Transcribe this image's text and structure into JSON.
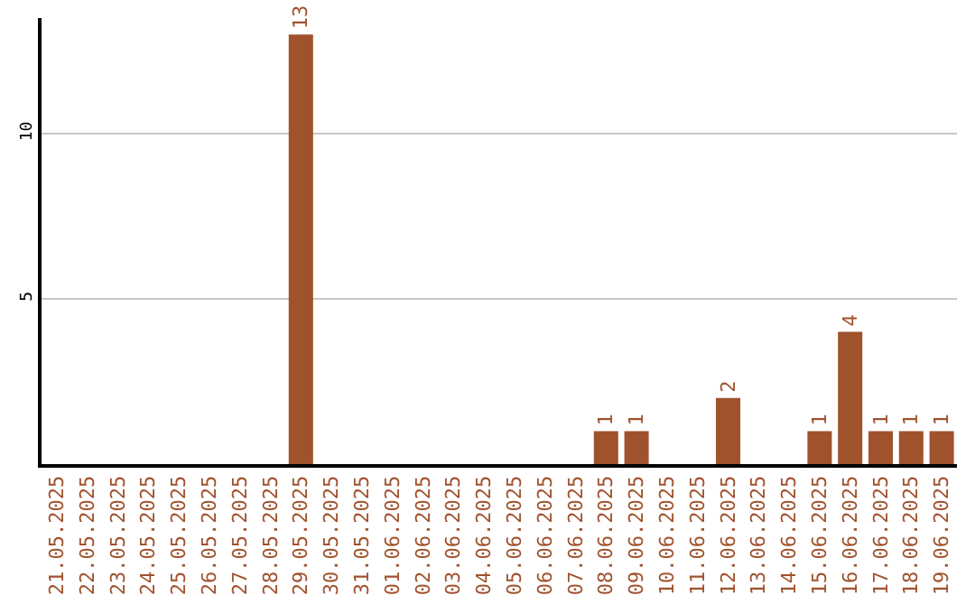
{
  "chart_data": {
    "type": "bar",
    "categories": [
      "21.05.2025",
      "22.05.2025",
      "23.05.2025",
      "24.05.2025",
      "25.05.2025",
      "26.05.2025",
      "27.05.2025",
      "28.05.2025",
      "29.05.2025",
      "30.05.2025",
      "31.05.2025",
      "01.06.2025",
      "02.06.2025",
      "03.06.2025",
      "04.06.2025",
      "05.06.2025",
      "06.06.2025",
      "07.06.2025",
      "08.06.2025",
      "09.06.2025",
      "10.06.2025",
      "11.06.2025",
      "12.06.2025",
      "13.06.2025",
      "14.06.2025",
      "15.06.2025",
      "16.06.2025",
      "17.06.2025",
      "18.06.2025",
      "19.06.2025"
    ],
    "values": [
      0,
      0,
      0,
      0,
      0,
      0,
      0,
      0,
      13,
      0,
      0,
      0,
      0,
      0,
      0,
      0,
      0,
      0,
      1,
      1,
      0,
      0,
      2,
      0,
      0,
      1,
      4,
      1,
      1,
      1
    ],
    "value_labels": [
      null,
      null,
      null,
      null,
      null,
      null,
      null,
      null,
      "13",
      null,
      null,
      null,
      null,
      null,
      null,
      null,
      null,
      null,
      "1",
      "1",
      null,
      null,
      "2",
      null,
      null,
      "1",
      "4",
      "1",
      "1",
      "1"
    ],
    "color": "#a0522d",
    "ylim": [
      0,
      13.5
    ],
    "yticks": [
      5,
      10
    ],
    "grid": "y"
  }
}
